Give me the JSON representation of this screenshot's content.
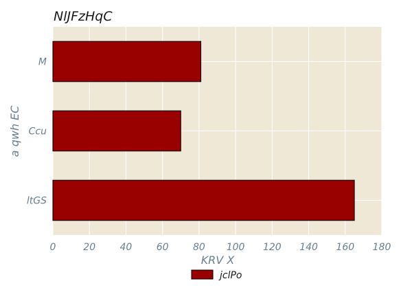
{
  "chart_data": {
    "type": "bar",
    "orientation": "horizontal",
    "title": "NlJFzHqC",
    "xlabel": "KRV X",
    "ylabel": "a qwh EC",
    "categories": [
      "ltGS",
      "Ccu",
      "M"
    ],
    "series": [
      {
        "name": "jclPo",
        "values": [
          165,
          70,
          81
        ],
        "color": "#990000"
      }
    ],
    "xlim": [
      0,
      180
    ],
    "xticks": [
      0,
      20,
      40,
      60,
      80,
      100,
      120,
      140,
      160,
      180
    ],
    "grid": true,
    "background": "#efe8d7",
    "grid_color": "#ffffff",
    "legend_placement": "bottom-center"
  }
}
